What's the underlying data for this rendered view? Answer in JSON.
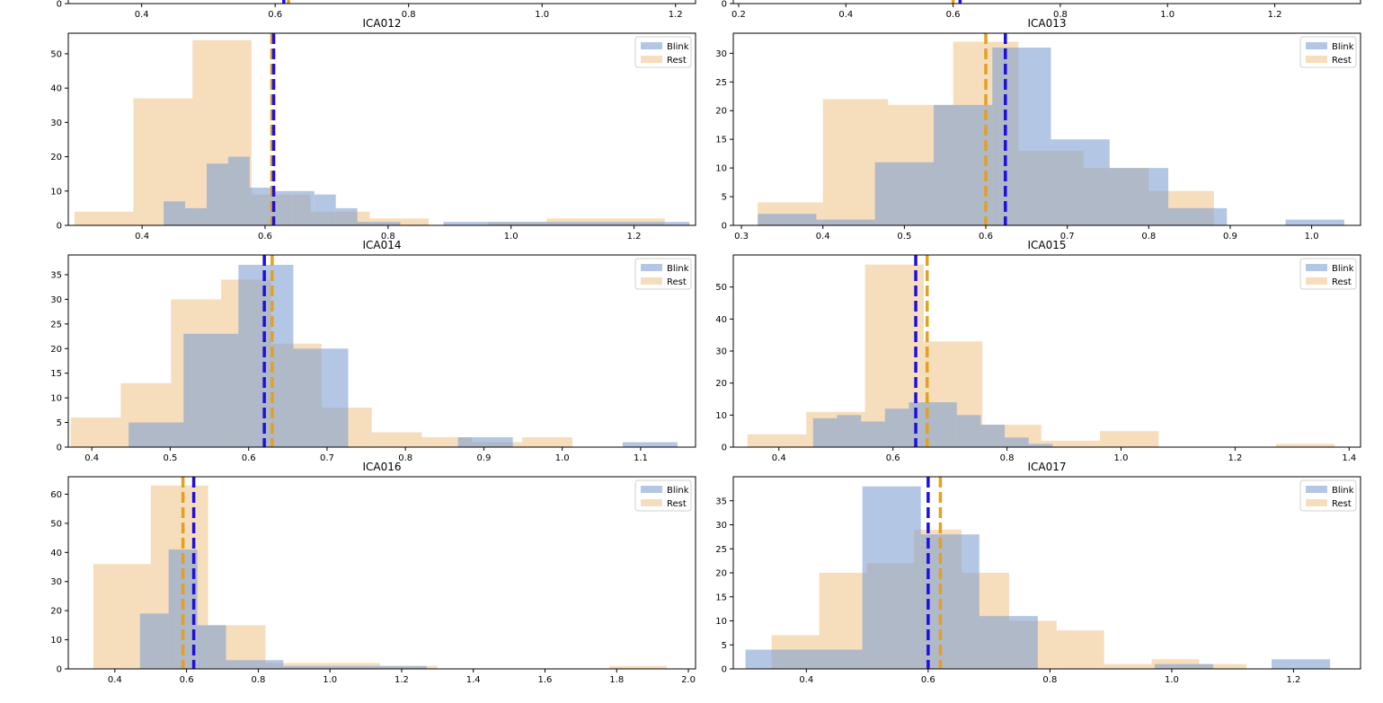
{
  "colors": {
    "blink": "#7c9fd1",
    "rest": "#f0c48c",
    "blink_mean": "#1f0fdc",
    "rest_mean": "#e4a021",
    "axis": "#000000"
  },
  "chart_data": [
    {
      "type": "bar",
      "title": "",
      "xlim": [
        0.29,
        1.23
      ],
      "ylim": [
        0,
        1
      ],
      "xticks": [
        0.4,
        0.6,
        0.8,
        1.0,
        1.2
      ],
      "xtick_labels": [
        "0.4",
        "0.6",
        "0.8",
        "1.0",
        "1.2"
      ],
      "yticks": [
        0
      ],
      "ytick_labels": [
        "0"
      ],
      "legend": null,
      "series": [],
      "mean_lines": [
        {
          "name": "Blink",
          "x": 0.613
        },
        {
          "name": "Rest",
          "x": 0.62
        }
      ]
    },
    {
      "type": "bar",
      "title": "",
      "xlim": [
        0.19,
        1.36
      ],
      "ylim": [
        0,
        1
      ],
      "xticks": [
        0.2,
        0.4,
        0.6,
        0.8,
        1.0,
        1.2
      ],
      "xtick_labels": [
        "0.2",
        "0.4",
        "0.6",
        "0.8",
        "1.0",
        "1.2"
      ],
      "yticks": [
        0
      ],
      "ytick_labels": [
        "0"
      ],
      "legend": null,
      "series": [],
      "mean_lines": [
        {
          "name": "Blink",
          "x": 0.613
        },
        {
          "name": "Rest",
          "x": 0.6
        }
      ]
    },
    {
      "type": "bar",
      "title": "ICA012",
      "xlim": [
        0.28,
        1.3
      ],
      "ylim": [
        0,
        56
      ],
      "xticks": [
        0.4,
        0.6,
        0.8,
        1.0,
        1.2
      ],
      "xtick_labels": [
        "0.4",
        "0.6",
        "0.8",
        "1.0",
        "1.2"
      ],
      "yticks": [
        0,
        10,
        20,
        30,
        40,
        50
      ],
      "ytick_labels": [
        "0",
        "10",
        "20",
        "30",
        "40",
        "50"
      ],
      "legend": "top-right",
      "series": [
        {
          "name": "Rest",
          "edges": [
            0.29,
            0.386,
            0.482,
            0.578,
            0.674,
            0.77,
            0.866,
            0.962,
            1.058,
            1.154,
            1.25
          ],
          "counts": [
            4,
            37,
            54,
            9,
            4,
            2,
            0,
            1,
            2,
            2
          ]
        },
        {
          "name": "Blink",
          "edges": [
            0.435,
            0.47,
            0.505,
            0.54,
            0.575,
            0.61,
            0.645,
            0.68,
            0.715,
            0.75,
            0.785,
            0.82,
            0.855,
            0.89,
            1.29
          ],
          "counts": [
            7,
            5,
            18,
            20,
            11,
            10,
            10,
            9,
            5,
            1,
            1,
            0,
            0,
            1
          ]
        }
      ],
      "mean_lines": [
        {
          "name": "Rest",
          "x": 0.611
        },
        {
          "name": "Blink",
          "x": 0.614
        }
      ]
    },
    {
      "type": "bar",
      "title": "ICA013",
      "xlim": [
        0.29,
        1.06
      ],
      "ylim": [
        0,
        33.5
      ],
      "xticks": [
        0.3,
        0.4,
        0.5,
        0.6,
        0.7,
        0.8,
        0.9,
        1.0
      ],
      "xtick_labels": [
        "0.3",
        "0.4",
        "0.5",
        "0.6",
        "0.7",
        "0.8",
        "0.9",
        "1.0"
      ],
      "yticks": [
        0,
        5,
        10,
        15,
        20,
        25,
        30
      ],
      "ytick_labels": [
        "0",
        "5",
        "10",
        "15",
        "20",
        "25",
        "30"
      ],
      "legend": "top-right",
      "series": [
        {
          "name": "Rest",
          "edges": [
            0.32,
            0.4,
            0.48,
            0.56,
            0.64,
            0.72,
            0.8,
            0.88
          ],
          "counts": [
            4,
            22,
            21,
            32,
            13,
            10,
            6,
            2
          ]
        },
        {
          "name": "Blink",
          "edges": [
            0.32,
            0.392,
            0.464,
            0.536,
            0.608,
            0.68,
            0.752,
            0.824,
            0.896,
            0.968,
            1.04
          ],
          "counts": [
            2,
            1,
            11,
            21,
            31,
            15,
            10,
            3,
            0,
            1
          ]
        }
      ],
      "mean_lines": [
        {
          "name": "Rest",
          "x": 0.6
        },
        {
          "name": "Blink",
          "x": 0.624
        }
      ]
    },
    {
      "type": "bar",
      "title": "ICA014",
      "xlim": [
        0.37,
        1.17
      ],
      "ylim": [
        0,
        39
      ],
      "xticks": [
        0.4,
        0.5,
        0.6,
        0.7,
        0.8,
        0.9,
        1.0,
        1.1
      ],
      "xtick_labels": [
        "0.4",
        "0.5",
        "0.6",
        "0.7",
        "0.8",
        "0.9",
        "1.0",
        "1.1"
      ],
      "yticks": [
        0,
        5,
        10,
        15,
        20,
        25,
        30,
        35
      ],
      "ytick_labels": [
        "0",
        "5",
        "10",
        "15",
        "20",
        "25",
        "30",
        "35"
      ],
      "legend": "top-right",
      "series": [
        {
          "name": "Rest",
          "edges": [
            0.373,
            0.437,
            0.501,
            0.565,
            0.629,
            0.693,
            0.757,
            0.821,
            0.885,
            0.949,
            1.013,
            1.077
          ],
          "counts": [
            6,
            13,
            30,
            34,
            21,
            8,
            3,
            2,
            1,
            2,
            0
          ]
        },
        {
          "name": "Blink",
          "edges": [
            0.447,
            0.517,
            0.587,
            0.657,
            0.727,
            0.797,
            0.867,
            0.937,
            1.007,
            1.077,
            1.147
          ],
          "counts": [
            5,
            23,
            37,
            20,
            0,
            0,
            2,
            0,
            0,
            1
          ]
        }
      ],
      "mean_lines": [
        {
          "name": "Blink",
          "x": 0.62
        },
        {
          "name": "Rest",
          "x": 0.63
        }
      ]
    },
    {
      "type": "bar",
      "title": "ICA015",
      "xlim": [
        0.32,
        1.42
      ],
      "ylim": [
        0,
        60
      ],
      "xticks": [
        0.4,
        0.6,
        0.8,
        1.0,
        1.2,
        1.4
      ],
      "xtick_labels": [
        "0.4",
        "0.6",
        "0.8",
        "1.0",
        "1.2",
        "1.4"
      ],
      "yticks": [
        0,
        10,
        20,
        30,
        40,
        50
      ],
      "ytick_labels": [
        "0",
        "10",
        "20",
        "30",
        "40",
        "50"
      ],
      "legend": "top-right",
      "series": [
        {
          "name": "Rest",
          "edges": [
            0.345,
            0.448,
            0.551,
            0.654,
            0.757,
            0.86,
            0.963,
            1.066,
            1.169,
            1.272,
            1.375
          ],
          "counts": [
            4,
            11,
            57,
            33,
            7,
            2,
            5,
            0,
            0,
            1
          ]
        },
        {
          "name": "Blink",
          "edges": [
            0.46,
            0.502,
            0.544,
            0.586,
            0.628,
            0.67,
            0.712,
            0.754,
            0.796,
            0.838,
            0.88
          ],
          "counts": [
            9,
            10,
            8,
            12,
            14,
            14,
            10,
            7,
            3,
            1
          ]
        }
      ],
      "mean_lines": [
        {
          "name": "Blink",
          "x": 0.64
        },
        {
          "name": "Rest",
          "x": 0.66
        }
      ]
    },
    {
      "type": "bar",
      "title": "ICA016",
      "xlim": [
        0.27,
        2.02
      ],
      "ylim": [
        0,
        66
      ],
      "xticks": [
        0.4,
        0.6,
        0.8,
        1.0,
        1.2,
        1.4,
        1.6,
        1.8,
        2.0
      ],
      "xtick_labels": [
        "0.4",
        "0.6",
        "0.8",
        "1.0",
        "1.2",
        "1.4",
        "1.6",
        "1.8",
        "2.0"
      ],
      "yticks": [
        0,
        10,
        20,
        30,
        40,
        50,
        60
      ],
      "ytick_labels": [
        "0",
        "10",
        "20",
        "30",
        "40",
        "50",
        "60"
      ],
      "legend": "top-right",
      "series": [
        {
          "name": "Rest",
          "edges": [
            0.34,
            0.5,
            0.66,
            0.82,
            0.98,
            1.14,
            1.3,
            1.46,
            1.62,
            1.78,
            1.94
          ],
          "counts": [
            36,
            63,
            15,
            2,
            2,
            1,
            0,
            0,
            0,
            1
          ]
        },
        {
          "name": "Blink",
          "edges": [
            0.47,
            0.55,
            0.63,
            0.71,
            0.79,
            0.87,
            0.95,
            1.03,
            1.11,
            1.19,
            1.27
          ],
          "counts": [
            19,
            41,
            15,
            3,
            3,
            1,
            1,
            1,
            1,
            1
          ]
        }
      ],
      "mean_lines": [
        {
          "name": "Rest",
          "x": 0.59
        },
        {
          "name": "Blink",
          "x": 0.62
        }
      ]
    },
    {
      "type": "bar",
      "title": "ICA017",
      "xlim": [
        0.28,
        1.31
      ],
      "ylim": [
        0,
        40
      ],
      "xticks": [
        0.4,
        0.6,
        0.8,
        1.0,
        1.2
      ],
      "xtick_labels": [
        "0.4",
        "0.6",
        "0.8",
        "1.0",
        "1.2"
      ],
      "yticks": [
        0,
        5,
        10,
        15,
        20,
        25,
        30,
        35
      ],
      "ytick_labels": [
        "0",
        "5",
        "10",
        "15",
        "20",
        "25",
        "30",
        "35"
      ],
      "legend": "top-right",
      "series": [
        {
          "name": "Rest",
          "edges": [
            0.343,
            0.421,
            0.499,
            0.577,
            0.655,
            0.733,
            0.811,
            0.889,
            0.967,
            1.045,
            1.123
          ],
          "counts": [
            7,
            20,
            22,
            29,
            20,
            10,
            8,
            1,
            2,
            1
          ]
        },
        {
          "name": "Blink",
          "edges": [
            0.3,
            0.396,
            0.492,
            0.588,
            0.684,
            0.78,
            0.876,
            0.972,
            1.068,
            1.164,
            1.26
          ],
          "counts": [
            4,
            4,
            38,
            28,
            11,
            0,
            0,
            1,
            0,
            2
          ]
        }
      ],
      "mean_lines": [
        {
          "name": "Blink",
          "x": 0.6
        },
        {
          "name": "Rest",
          "x": 0.62
        }
      ]
    }
  ]
}
